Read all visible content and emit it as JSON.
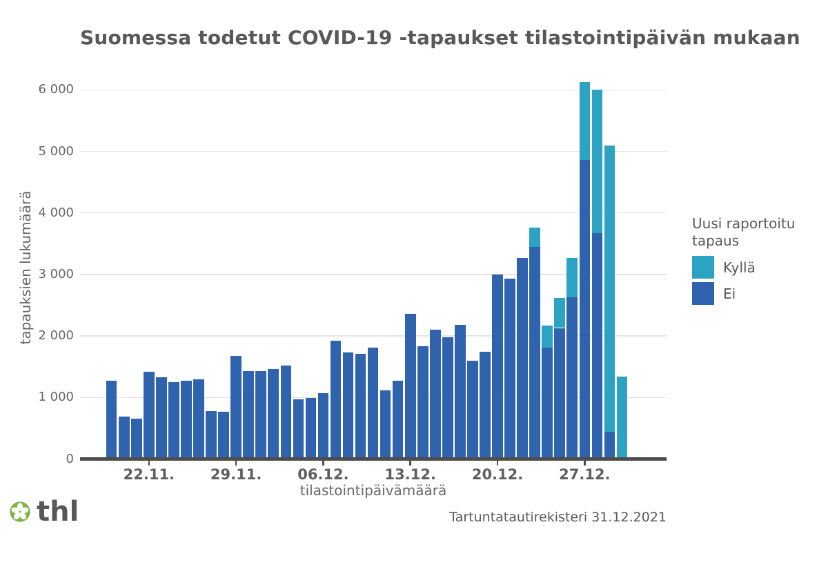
{
  "title": "Suomessa todetut COVID-19 -tapaukset tilastointipäivän mukaan",
  "colors": {
    "kylla_teal": "#2ca3c3",
    "ei_blue": "#2f63ae",
    "axis_line": "#4d4d4d",
    "gridline": "#e3e3e3",
    "title_gray": "#595959",
    "thl_green": "#7db440"
  },
  "chart_data": {
    "type": "bar",
    "stacked": true,
    "title": "Suomessa todetut COVID-19 -tapaukset tilastointipäivän mukaan",
    "xlabel": "tilastointipäivämäärä",
    "ylabel": "tapauksien lukumäärä",
    "ylim": [
      0,
      6400
    ],
    "grid": true,
    "legend_position": "right",
    "legend_title": "Uusi raportoitu tapaus",
    "x": [
      "19.11.",
      "20.11.",
      "21.11.",
      "22.11.",
      "23.11.",
      "24.11.",
      "25.11.",
      "26.11.",
      "27.11.",
      "28.11.",
      "29.11.",
      "30.11.",
      "01.12.",
      "02.12.",
      "03.12.",
      "04.12.",
      "05.12.",
      "06.12.",
      "07.12.",
      "08.12.",
      "09.12.",
      "10.12.",
      "11.12.",
      "12.12.",
      "13.12.",
      "14.12.",
      "15.12.",
      "16.12.",
      "17.12.",
      "18.12.",
      "19.12.",
      "20.12.",
      "21.12.",
      "22.12.",
      "23.12.",
      "24.12.",
      "25.12.",
      "26.12.",
      "27.12.",
      "28.12.",
      "29.12.",
      "30.12."
    ],
    "series": [
      {
        "name": "Ei",
        "color": "#2f63ae",
        "values": [
          1270,
          690,
          660,
          1415,
          1330,
          1245,
          1275,
          1295,
          780,
          770,
          1680,
          1425,
          1430,
          1460,
          1520,
          970,
          995,
          1075,
          1925,
          1735,
          1705,
          1810,
          1120,
          1270,
          2360,
          1830,
          2100,
          1980,
          2180,
          1600,
          1740,
          3000,
          2930,
          3270,
          3445,
          1810,
          2130,
          2630,
          4860,
          3670,
          445,
          0
        ]
      },
      {
        "name": "Kyllä",
        "color": "#2ca3c3",
        "values": [
          0,
          0,
          0,
          0,
          0,
          0,
          0,
          0,
          0,
          0,
          0,
          0,
          0,
          0,
          0,
          0,
          0,
          0,
          0,
          0,
          0,
          0,
          0,
          0,
          0,
          0,
          0,
          0,
          0,
          0,
          0,
          0,
          0,
          0,
          315,
          360,
          490,
          635,
          1265,
          2330,
          4645,
          1340
        ]
      }
    ],
    "yticks": [
      0,
      1000,
      2000,
      3000,
      4000,
      5000,
      6000
    ],
    "ytick_labels": [
      "0",
      "1 000",
      "2 000",
      "3 000",
      "4 000",
      "5 000",
      "6 000"
    ],
    "xticks": [
      {
        "index": 3,
        "label": "22.11."
      },
      {
        "index": 10,
        "label": "29.11."
      },
      {
        "index": 17,
        "label": "06.12."
      },
      {
        "index": 24,
        "label": "13.12."
      },
      {
        "index": 31,
        "label": "20.12."
      },
      {
        "index": 38,
        "label": "27.12."
      }
    ]
  },
  "legend": {
    "title": "Uusi raportoitu tapaus",
    "items": [
      {
        "label": "Kyllä",
        "color": "#2ca3c3"
      },
      {
        "label": "Ei",
        "color": "#2f63ae"
      }
    ]
  },
  "footer": {
    "logo_text": "thl",
    "source": "Tartuntatautirekisteri 31.12.2021"
  }
}
